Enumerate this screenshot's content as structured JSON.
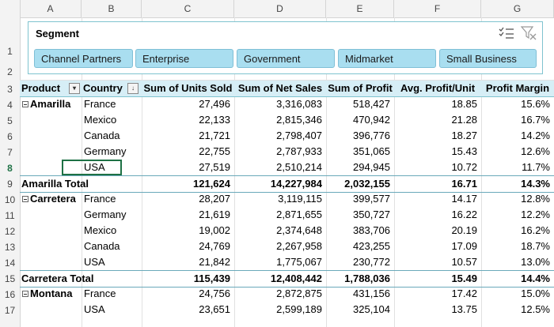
{
  "columns": [
    "A",
    "B",
    "C",
    "D",
    "E",
    "F",
    "G"
  ],
  "row_numbers": [
    "1",
    "2",
    "3",
    "4",
    "5",
    "6",
    "7",
    "8",
    "9",
    "10",
    "11",
    "12",
    "13",
    "14",
    "15",
    "16",
    "17"
  ],
  "slicer": {
    "title": "Segment",
    "multiselect_icon": "multi-select-icon",
    "clear_icon": "clear-filter-icon",
    "items": [
      "Channel Partners",
      "Enterprise",
      "Government",
      "Midmarket",
      "Small Business"
    ]
  },
  "pivot": {
    "headers": [
      "Product",
      "Country",
      "Sum of Units Sold",
      "Sum of Net Sales",
      "Sum of Profit",
      "Avg. Profit/Unit",
      "Profit Margin"
    ],
    "rows": [
      {
        "product": "Amarilla",
        "country": "France",
        "units": "27,496",
        "sales": "3,316,083",
        "profit": "518,427",
        "avg": "18.85",
        "margin": "15.6%"
      },
      {
        "product": "",
        "country": "Mexico",
        "units": "22,133",
        "sales": "2,815,346",
        "profit": "470,942",
        "avg": "21.28",
        "margin": "16.7%"
      },
      {
        "product": "",
        "country": "Canada",
        "units": "21,721",
        "sales": "2,798,407",
        "profit": "396,776",
        "avg": "18.27",
        "margin": "14.2%"
      },
      {
        "product": "",
        "country": "Germany",
        "units": "22,755",
        "sales": "2,787,933",
        "profit": "351,065",
        "avg": "15.43",
        "margin": "12.6%"
      },
      {
        "product": "",
        "country": "USA",
        "units": "27,519",
        "sales": "2,510,214",
        "profit": "294,945",
        "avg": "10.72",
        "margin": "11.7%"
      },
      {
        "total": "Amarilla Total",
        "units": "121,624",
        "sales": "14,227,984",
        "profit": "2,032,155",
        "avg": "16.71",
        "margin": "14.3%"
      },
      {
        "product": "Carretera",
        "country": "France",
        "units": "28,207",
        "sales": "3,119,115",
        "profit": "399,577",
        "avg": "14.17",
        "margin": "12.8%"
      },
      {
        "product": "",
        "country": "Germany",
        "units": "21,619",
        "sales": "2,871,655",
        "profit": "350,727",
        "avg": "16.22",
        "margin": "12.2%"
      },
      {
        "product": "",
        "country": "Mexico",
        "units": "19,002",
        "sales": "2,374,648",
        "profit": "383,706",
        "avg": "20.19",
        "margin": "16.2%"
      },
      {
        "product": "",
        "country": "Canada",
        "units": "24,769",
        "sales": "2,267,958",
        "profit": "423,255",
        "avg": "17.09",
        "margin": "18.7%"
      },
      {
        "product": "",
        "country": "USA",
        "units": "21,842",
        "sales": "1,775,067",
        "profit": "230,772",
        "avg": "10.57",
        "margin": "13.0%"
      },
      {
        "total": "Carretera Total",
        "units": "115,439",
        "sales": "12,408,442",
        "profit": "1,788,036",
        "avg": "15.49",
        "margin": "14.4%"
      },
      {
        "product": "Montana",
        "country": "France",
        "units": "24,756",
        "sales": "2,872,875",
        "profit": "431,156",
        "avg": "17.42",
        "margin": "15.0%"
      },
      {
        "product": "",
        "country": "USA",
        "units": "23,651",
        "sales": "2,599,189",
        "profit": "325,104",
        "avg": "13.75",
        "margin": "12.5%"
      }
    ]
  },
  "colors": {
    "header_fill": "#d6eef6",
    "slicer_button": "#a9def0",
    "selection": "#1e7145"
  }
}
